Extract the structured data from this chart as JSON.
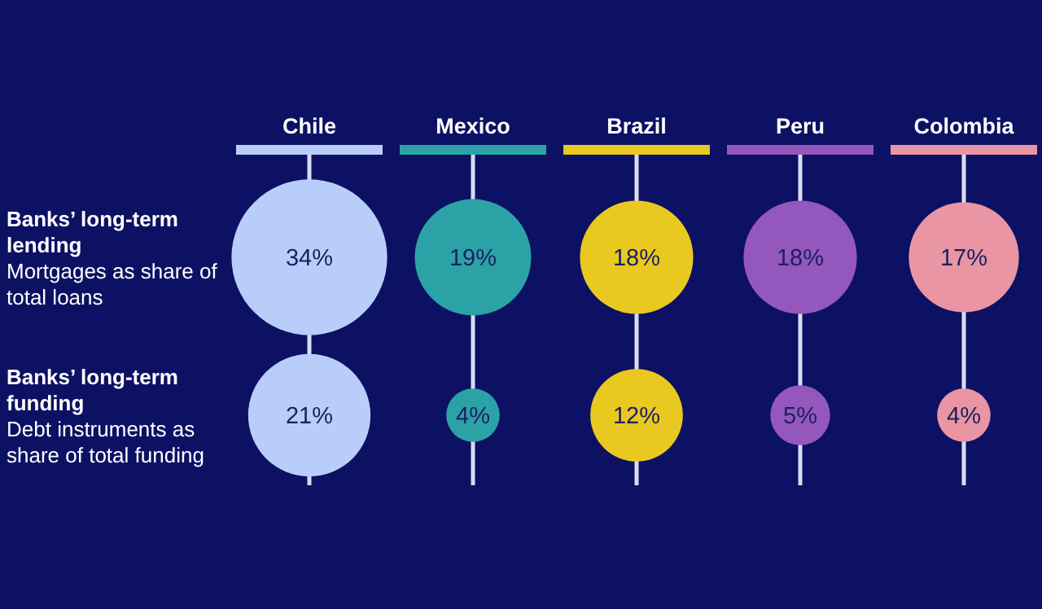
{
  "chart_data": {
    "type": "other",
    "categories": [
      "Chile",
      "Mexico",
      "Brazil",
      "Peru",
      "Colombia"
    ],
    "series": [
      {
        "colors": [
          "#b9cdfb",
          "#2ba3a6",
          "#e9c81f",
          "#9457bd",
          "#e995a3"
        ],
        "values": [
          34,
          19,
          18,
          18,
          17
        ],
        "value_labels": [
          "34%",
          "19%",
          "18%",
          "18%",
          "17%"
        ]
      },
      {
        "colors": [
          "#b9cdfb",
          "#2ba3a6",
          "#e9c81f",
          "#9457bd",
          "#e995a3"
        ],
        "values": [
          21,
          4,
          12,
          5,
          4
        ],
        "value_labels": [
          "21%",
          "4%",
          "12%",
          "5%",
          "4%"
        ]
      }
    ],
    "annotations": [
      "Banks’ long-term lending",
      "Mortgages as share of total loans",
      "Banks’ long-term funding",
      "Debt instruments as share of total funding"
    ],
    "data_labels": true
  }
}
